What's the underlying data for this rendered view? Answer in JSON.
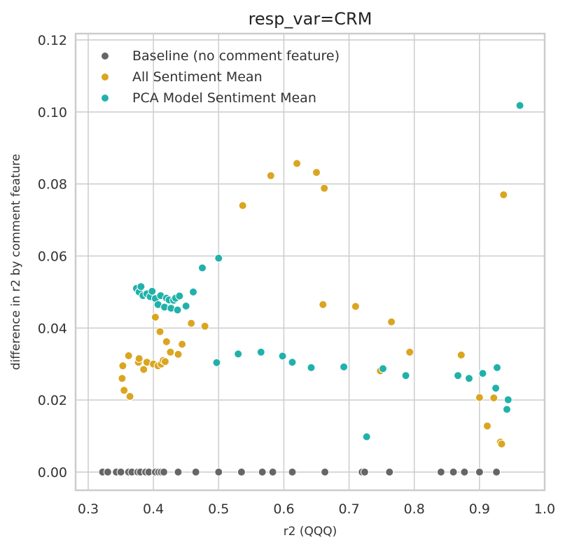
{
  "chart_data": {
    "type": "scatter",
    "title": "resp_var=CRM",
    "xlabel": "r2 (QQQ)",
    "ylabel": "difference in r2 by comment feature",
    "xlim": [
      0.28,
      1.0
    ],
    "ylim": [
      -0.005,
      0.122
    ],
    "xticks": [
      "0.3",
      "0.4",
      "0.5",
      "0.6",
      "0.7",
      "0.8",
      "0.9",
      "1.0"
    ],
    "yticks": [
      "0.00",
      "0.02",
      "0.04",
      "0.06",
      "0.08",
      "0.10",
      "0.12"
    ],
    "grid": true,
    "legend_position": "top-left",
    "series": [
      {
        "name": "Baseline (no comment feature)",
        "color": "#666666",
        "points": [
          [
            0.322,
            0
          ],
          [
            0.33,
            0
          ],
          [
            0.343,
            0
          ],
          [
            0.35,
            0
          ],
          [
            0.362,
            0
          ],
          [
            0.367,
            0
          ],
          [
            0.376,
            0
          ],
          [
            0.38,
            0
          ],
          [
            0.388,
            0
          ],
          [
            0.393,
            0
          ],
          [
            0.403,
            0
          ],
          [
            0.408,
            0
          ],
          [
            0.412,
            0
          ],
          [
            0.416,
            0
          ],
          [
            0.438,
            0
          ],
          [
            0.465,
            0
          ],
          [
            0.5,
            0
          ],
          [
            0.535,
            0
          ],
          [
            0.567,
            0
          ],
          [
            0.583,
            0
          ],
          [
            0.613,
            0
          ],
          [
            0.663,
            0
          ],
          [
            0.72,
            0
          ],
          [
            0.724,
            0
          ],
          [
            0.762,
            0
          ],
          [
            0.841,
            0
          ],
          [
            0.86,
            0
          ],
          [
            0.877,
            0
          ],
          [
            0.9,
            0
          ],
          [
            0.926,
            0
          ]
        ]
      },
      {
        "name": "All Sentiment Mean",
        "color": "#daa520",
        "points": [
          [
            0.352,
            0.026
          ],
          [
            0.353,
            0.0295
          ],
          [
            0.355,
            0.0227
          ],
          [
            0.362,
            0.0323
          ],
          [
            0.364,
            0.021
          ],
          [
            0.377,
            0.0305
          ],
          [
            0.378,
            0.0315
          ],
          [
            0.385,
            0.0285
          ],
          [
            0.39,
            0.0305
          ],
          [
            0.4,
            0.03
          ],
          [
            0.403,
            0.043
          ],
          [
            0.407,
            0.0295
          ],
          [
            0.41,
            0.039
          ],
          [
            0.412,
            0.03
          ],
          [
            0.415,
            0.031
          ],
          [
            0.418,
            0.0307
          ],
          [
            0.42,
            0.0362
          ],
          [
            0.426,
            0.0333
          ],
          [
            0.438,
            0.0327
          ],
          [
            0.444,
            0.0355
          ],
          [
            0.458,
            0.0413
          ],
          [
            0.479,
            0.0405
          ],
          [
            0.537,
            0.074
          ],
          [
            0.58,
            0.0823
          ],
          [
            0.62,
            0.0857
          ],
          [
            0.65,
            0.0832
          ],
          [
            0.66,
            0.0465
          ],
          [
            0.662,
            0.0788
          ],
          [
            0.71,
            0.046
          ],
          [
            0.748,
            0.0281
          ],
          [
            0.765,
            0.0417
          ],
          [
            0.793,
            0.0333
          ],
          [
            0.872,
            0.0325
          ],
          [
            0.9,
            0.0207
          ],
          [
            0.912,
            0.0128
          ],
          [
            0.922,
            0.0206
          ],
          [
            0.932,
            0.0083
          ],
          [
            0.934,
            0.0078
          ],
          [
            0.937,
            0.077
          ]
        ]
      },
      {
        "name": "PCA Model Sentiment Mean",
        "color": "#20b2aa",
        "points": [
          [
            0.374,
            0.051
          ],
          [
            0.378,
            0.05
          ],
          [
            0.381,
            0.0515
          ],
          [
            0.384,
            0.049
          ],
          [
            0.39,
            0.0495
          ],
          [
            0.395,
            0.0487
          ],
          [
            0.398,
            0.0502
          ],
          [
            0.403,
            0.0482
          ],
          [
            0.407,
            0.0465
          ],
          [
            0.411,
            0.049
          ],
          [
            0.417,
            0.0458
          ],
          [
            0.42,
            0.0483
          ],
          [
            0.424,
            0.0478
          ],
          [
            0.427,
            0.0455
          ],
          [
            0.431,
            0.0477
          ],
          [
            0.434,
            0.0483
          ],
          [
            0.437,
            0.045
          ],
          [
            0.44,
            0.0489
          ],
          [
            0.45,
            0.0461
          ],
          [
            0.461,
            0.05
          ],
          [
            0.475,
            0.0567
          ],
          [
            0.497,
            0.0304
          ],
          [
            0.5,
            0.0594
          ],
          [
            0.53,
            0.0328
          ],
          [
            0.565,
            0.0333
          ],
          [
            0.598,
            0.0322
          ],
          [
            0.613,
            0.0305
          ],
          [
            0.642,
            0.029
          ],
          [
            0.692,
            0.0292
          ],
          [
            0.727,
            0.0098
          ],
          [
            0.752,
            0.0287
          ],
          [
            0.787,
            0.0268
          ],
          [
            0.867,
            0.0268
          ],
          [
            0.884,
            0.026
          ],
          [
            0.905,
            0.0274
          ],
          [
            0.925,
            0.0233
          ],
          [
            0.927,
            0.029
          ],
          [
            0.942,
            0.0174
          ],
          [
            0.944,
            0.0201
          ],
          [
            0.962,
            0.1018
          ]
        ]
      }
    ]
  }
}
